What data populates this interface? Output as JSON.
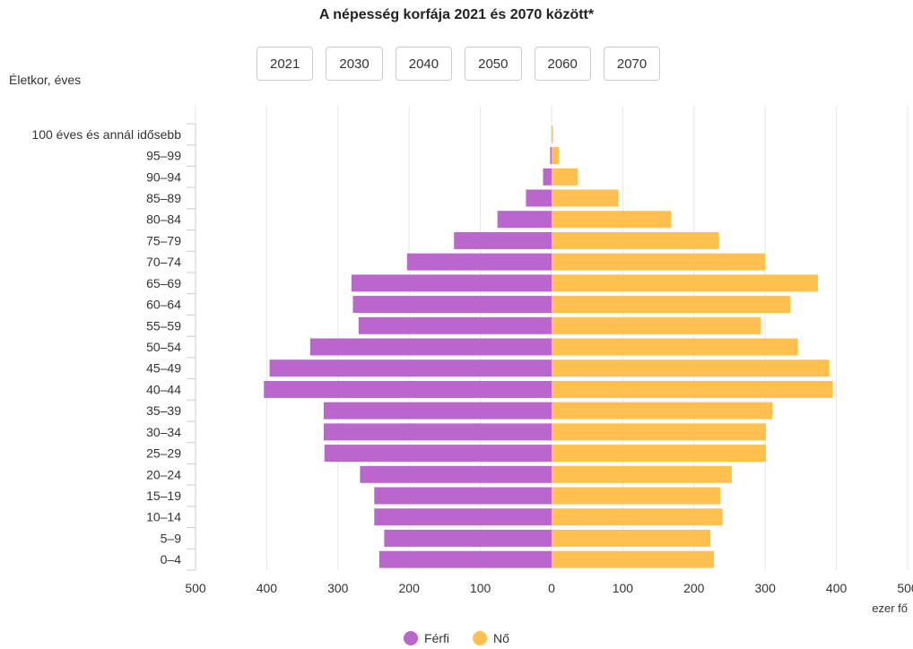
{
  "chart_data": {
    "type": "bar",
    "orientation": "horizontal",
    "title": "A népesség korfája 2021 és 2070 között*",
    "ylabel": "Életkor, éves",
    "xlabel": "ezer fő",
    "xlim": [
      -500,
      500
    ],
    "x_ticks": [
      -500,
      -400,
      -300,
      -200,
      -100,
      0,
      100,
      200,
      300,
      400,
      500
    ],
    "x_tick_labels": [
      "500",
      "400",
      "300",
      "200",
      "100",
      "0",
      "100",
      "200",
      "300",
      "400",
      "500"
    ],
    "categories": [
      "0–4",
      "5–9",
      "10–14",
      "15–19",
      "20–24",
      "25–29",
      "30–34",
      "35–39",
      "40–44",
      "45–49",
      "50–54",
      "55–59",
      "60–64",
      "65–69",
      "70–74",
      "75–79",
      "80–84",
      "85–89",
      "90–94",
      "95–99",
      "100 éves és annál idősebb"
    ],
    "series": [
      {
        "name": "Férfi",
        "color": "#bb66cc",
        "values": [
          242,
          235,
          249,
          249,
          269,
          319,
          320,
          320,
          404,
          396,
          339,
          271,
          279,
          281,
          203,
          137,
          76,
          36,
          12,
          2,
          0
        ]
      },
      {
        "name": "Nő",
        "color": "#ffc050",
        "values": [
          228,
          223,
          240,
          237,
          253,
          301,
          301,
          310,
          395,
          390,
          346,
          294,
          335,
          374,
          300,
          235,
          168,
          94,
          37,
          10,
          2
        ]
      }
    ],
    "legend_position": "bottom",
    "grid": "vertical"
  },
  "year_buttons": [
    "2021",
    "2030",
    "2040",
    "2050",
    "2060",
    "2070"
  ]
}
